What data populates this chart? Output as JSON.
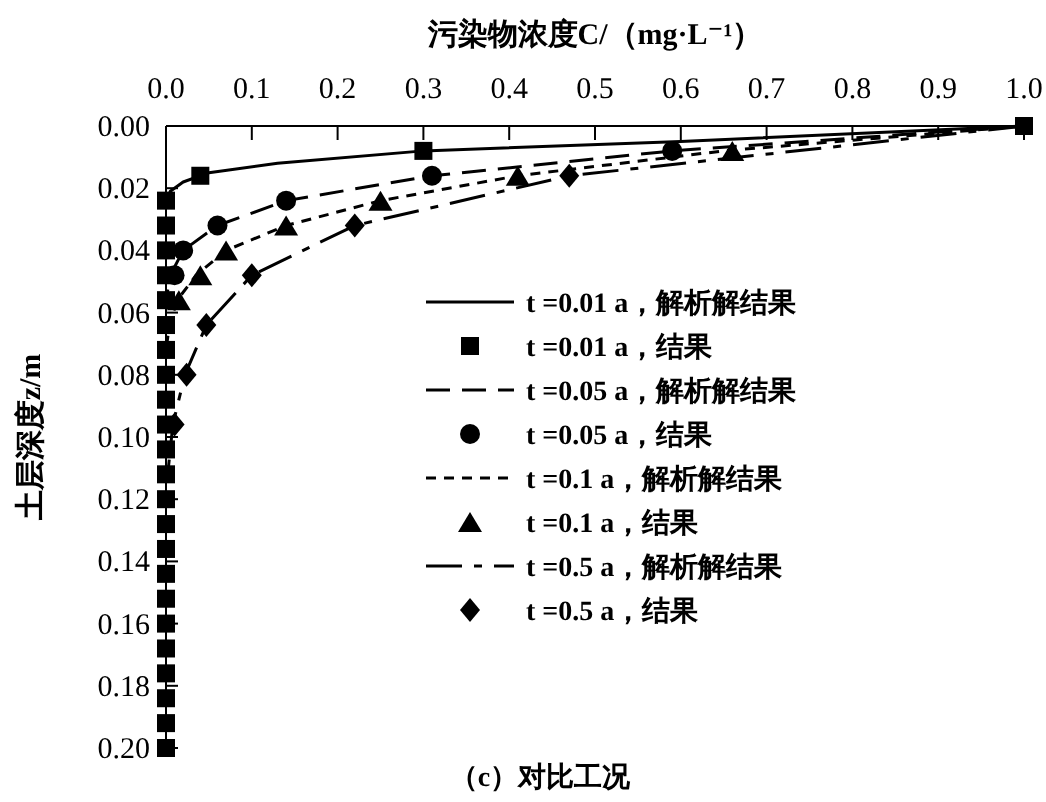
{
  "chart_data": {
    "type": "line",
    "xlabel": "污染物浓度C/（mg·L⁻¹）",
    "ylabel": "土层深度z/m",
    "annotations": [
      "（c）对比工况"
    ],
    "xlim": [
      0,
      1
    ],
    "xticks": [
      {
        "value": 0,
        "label": "0.0"
      },
      {
        "value": 0.1,
        "label": "0.1"
      },
      {
        "value": 0.2,
        "label": "0.2"
      },
      {
        "value": 0.3,
        "label": "0.3"
      },
      {
        "value": 0.4,
        "label": "0.4"
      },
      {
        "value": 0.5,
        "label": "0.5"
      },
      {
        "value": 0.6,
        "label": "0.6"
      },
      {
        "value": 0.7,
        "label": "0.7"
      },
      {
        "value": 0.8,
        "label": "0.8"
      },
      {
        "value": 0.9,
        "label": "0.9"
      },
      {
        "value": 1,
        "label": "1.0"
      }
    ],
    "ylim": [
      0.2,
      0
    ],
    "yticks": [
      {
        "value": 0,
        "label": "0.00"
      },
      {
        "value": 0.02,
        "label": "0.02"
      },
      {
        "value": 0.04,
        "label": "0.04"
      },
      {
        "value": 0.06,
        "label": "0.06"
      },
      {
        "value": 0.08,
        "label": "0.08"
      },
      {
        "value": 0.1,
        "label": "0.10"
      },
      {
        "value": 0.12,
        "label": "0.12"
      },
      {
        "value": 0.14,
        "label": "0.14"
      },
      {
        "value": 0.16,
        "label": "0.16"
      },
      {
        "value": 0.18,
        "label": "0.18"
      },
      {
        "value": 0.2,
        "label": "0.20"
      }
    ],
    "legend": "center right",
    "series": [
      {
        "name": "t =0.01 a，解析解结果",
        "line_style": "solid",
        "color": "#000000",
        "x": [
          1,
          0.6,
          0.3,
          0.13,
          0.05,
          0.02,
          0.005,
          0
        ],
        "values": [
          0,
          0.005,
          0.008,
          0.012,
          0.015,
          0.018,
          0.021,
          0.024
        ]
      },
      {
        "name": "t =0.01 a，结果",
        "type": "scatter",
        "marker": "square",
        "color": "#000000",
        "x": [
          1,
          0.3,
          0.04,
          0,
          0,
          0,
          0,
          0,
          0,
          0,
          0,
          0,
          0,
          0,
          0,
          0,
          0,
          0,
          0,
          0,
          0,
          0,
          0,
          0,
          0,
          0
        ],
        "values": [
          0,
          0.008,
          0.016,
          0.024,
          0.032,
          0.04,
          0.048,
          0.056,
          0.064,
          0.072,
          0.08,
          0.088,
          0.096,
          0.104,
          0.112,
          0.12,
          0.128,
          0.136,
          0.144,
          0.152,
          0.16,
          0.168,
          0.176,
          0.184,
          0.192,
          0.2
        ]
      },
      {
        "name": "t =0.05 a，解析解结果",
        "line_style": "dashed",
        "color": "#000000",
        "x": [
          1,
          0.59,
          0.31,
          0.14,
          0.06,
          0.02,
          0.005,
          0
        ],
        "values": [
          0,
          0.008,
          0.016,
          0.024,
          0.032,
          0.04,
          0.048,
          0.056
        ]
      },
      {
        "name": "t =0.05 a，结果",
        "type": "scatter",
        "marker": "circle",
        "color": "#000000",
        "x": [
          0.59,
          0.31,
          0.14,
          0.06,
          0.02,
          0.01
        ],
        "values": [
          0.008,
          0.016,
          0.024,
          0.032,
          0.04,
          0.048
        ]
      },
      {
        "name": "t =0.1 a，解析解结果",
        "line_style": "dotted",
        "color": "#000000",
        "x": [
          1,
          0.65,
          0.41,
          0.25,
          0.14,
          0.07,
          0.035,
          0.013,
          0.004,
          0
        ],
        "values": [
          0,
          0.008,
          0.016,
          0.024,
          0.032,
          0.04,
          0.048,
          0.056,
          0.064,
          0.072
        ]
      },
      {
        "name": "t =0.1 a，结果",
        "type": "scatter",
        "marker": "triangle",
        "color": "#000000",
        "x": [
          0.66,
          0.41,
          0.25,
          0.14,
          0.07,
          0.04,
          0.015
        ],
        "values": [
          0.008,
          0.016,
          0.024,
          0.032,
          0.04,
          0.048,
          0.056
        ]
      },
      {
        "name": "t =0.5 a，解析解结果",
        "line_style": "dashdot",
        "color": "#000000",
        "x": [
          1,
          0.47,
          0.22,
          0.1,
          0.047,
          0.022,
          0.008,
          0.002
        ],
        "values": [
          0,
          0.016,
          0.032,
          0.048,
          0.064,
          0.08,
          0.096,
          0.112
        ]
      },
      {
        "name": "t =0.5 a，结果",
        "type": "scatter",
        "marker": "diamond",
        "color": "#000000",
        "x": [
          0.47,
          0.22,
          0.1,
          0.047,
          0.024,
          0.01
        ],
        "values": [
          0.016,
          0.032,
          0.048,
          0.064,
          0.08,
          0.096
        ]
      }
    ]
  }
}
